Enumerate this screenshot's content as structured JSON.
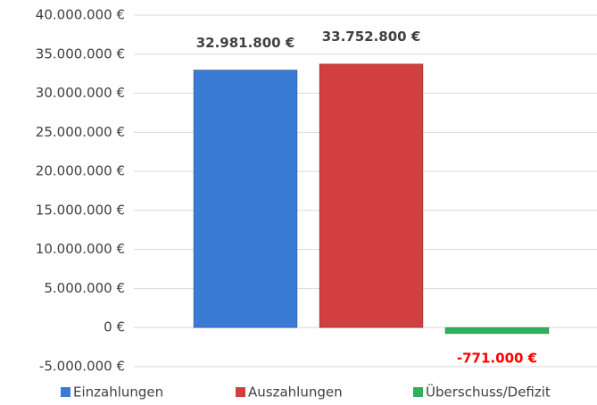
{
  "chart_data": {
    "type": "bar",
    "categories": [
      null
    ],
    "series": [
      {
        "name": "Einzahlungen",
        "color": "#3a7bd5",
        "values": [
          32981800
        ],
        "value_labels": [
          "32.981.800 €"
        ],
        "value_label_color": "#404040"
      },
      {
        "name": "Auszahlungen",
        "color": "#d23f3f",
        "values": [
          33752800
        ],
        "value_labels": [
          "33.752.800 €"
        ],
        "value_label_color": "#404040"
      },
      {
        "name": "Überschuss/Defizit",
        "color": "#2bb35a",
        "values": [
          -771000
        ],
        "value_labels": [
          "-771.000 €"
        ],
        "value_label_color": "#ff0000"
      }
    ],
    "ylim": [
      -5000000,
      40000000
    ],
    "yticks": [
      {
        "value": -5000000,
        "label": "-5.000.000 €"
      },
      {
        "value": 0,
        "label": "0 €"
      },
      {
        "value": 5000000,
        "label": "5.000.000 €"
      },
      {
        "value": 10000000,
        "label": "10.000.000 €"
      },
      {
        "value": 15000000,
        "label": "15.000.000 €"
      },
      {
        "value": 20000000,
        "label": "20.000.000 €"
      },
      {
        "value": 25000000,
        "label": "25.000.000 €"
      },
      {
        "value": 30000000,
        "label": "30.000.000 €"
      },
      {
        "value": 35000000,
        "label": "35.000.000 €"
      },
      {
        "value": 40000000,
        "label": "40.000.000 €"
      }
    ],
    "grid": true,
    "legend": "bottom"
  }
}
